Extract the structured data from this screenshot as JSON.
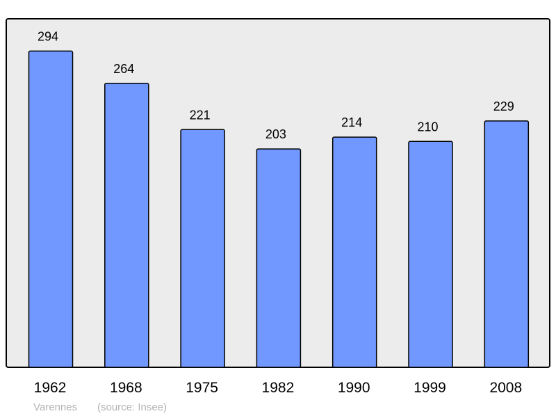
{
  "chart_data": {
    "type": "bar",
    "title": "",
    "xlabel": "",
    "ylabel": "",
    "categories": [
      "1962",
      "1968",
      "1975",
      "1982",
      "1990",
      "1999",
      "2008"
    ],
    "values": [
      294,
      264,
      221,
      203,
      214,
      210,
      229
    ],
    "ylim": [
      0,
      324
    ],
    "grid": false,
    "legend": "none",
    "data_labels": true,
    "colors": {
      "bar": "#7098ff",
      "background": "#ececec",
      "border": "#000000",
      "footer": "#b3b3b3"
    }
  },
  "footer": {
    "place": "Varennes",
    "source": "(source: Insee)"
  }
}
